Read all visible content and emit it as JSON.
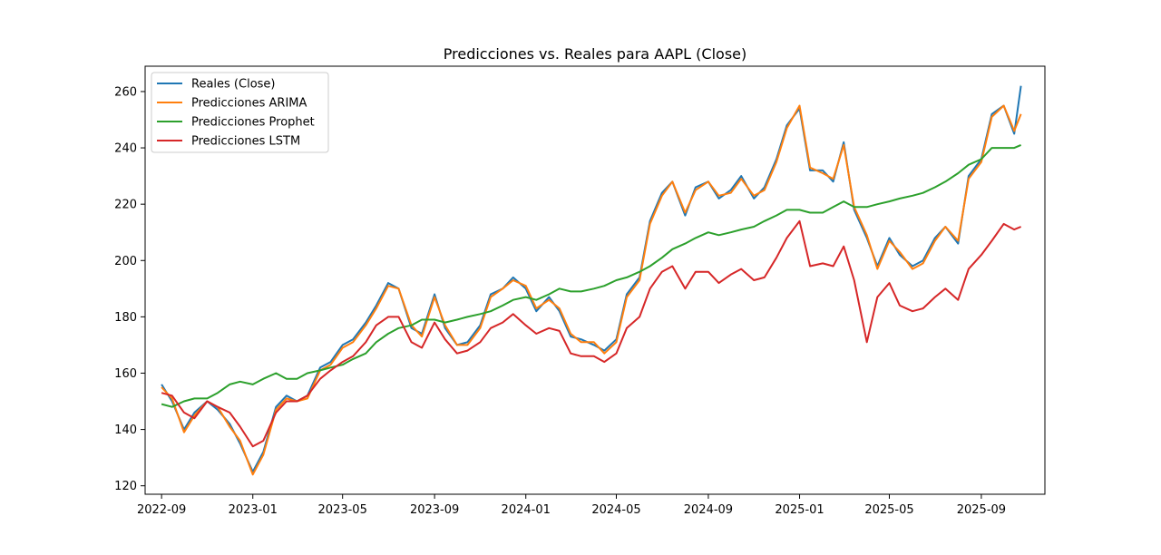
{
  "chart_data": {
    "type": "line",
    "title": "Predicciones vs. Reales para AAPL (Close)",
    "xlabel": "",
    "ylabel": "",
    "x_ticks": [
      "2022-09",
      "2023-01",
      "2023-05",
      "2023-09",
      "2024-01",
      "2024-05",
      "2024-09",
      "2025-01",
      "2025-05",
      "2025-09"
    ],
    "y_ticks": [
      120,
      140,
      160,
      180,
      200,
      220,
      240,
      260
    ],
    "ylim": [
      117,
      269
    ],
    "xlim": [
      "2022-08-10",
      "2025-11-25"
    ],
    "grid": false,
    "legend_position": "top-left",
    "x": [
      "2022-09-01",
      "2022-09-15",
      "2022-10-01",
      "2022-10-15",
      "2022-11-01",
      "2022-11-15",
      "2022-12-01",
      "2022-12-15",
      "2023-01-01",
      "2023-01-15",
      "2023-02-01",
      "2023-02-15",
      "2023-03-01",
      "2023-03-15",
      "2023-04-01",
      "2023-04-15",
      "2023-05-01",
      "2023-05-15",
      "2023-06-01",
      "2023-06-15",
      "2023-07-01",
      "2023-07-15",
      "2023-08-01",
      "2023-08-15",
      "2023-09-01",
      "2023-09-15",
      "2023-10-01",
      "2023-10-15",
      "2023-11-01",
      "2023-11-15",
      "2023-12-01",
      "2023-12-15",
      "2024-01-01",
      "2024-01-15",
      "2024-02-01",
      "2024-02-15",
      "2024-03-01",
      "2024-03-15",
      "2024-04-01",
      "2024-04-15",
      "2024-05-01",
      "2024-05-15",
      "2024-06-01",
      "2024-06-15",
      "2024-07-01",
      "2024-07-15",
      "2024-08-01",
      "2024-08-15",
      "2024-09-01",
      "2024-09-15",
      "2024-10-01",
      "2024-10-15",
      "2024-11-01",
      "2024-11-15",
      "2024-12-01",
      "2024-12-15",
      "2025-01-01",
      "2025-01-15",
      "2025-02-01",
      "2025-02-15",
      "2025-03-01",
      "2025-03-15",
      "2025-04-01",
      "2025-04-15",
      "2025-05-01",
      "2025-05-15",
      "2025-06-01",
      "2025-06-15",
      "2025-07-01",
      "2025-07-15",
      "2025-08-01",
      "2025-08-15",
      "2025-09-01",
      "2025-09-15",
      "2025-10-01",
      "2025-10-15",
      "2025-10-24"
    ],
    "series": [
      {
        "name": "Reales (Close)",
        "color": "#1f77b4",
        "values": [
          156,
          150,
          140,
          146,
          150,
          147,
          142,
          135,
          125,
          132,
          148,
          152,
          150,
          152,
          162,
          164,
          170,
          172,
          178,
          184,
          192,
          190,
          176,
          174,
          188,
          176,
          170,
          171,
          177,
          188,
          190,
          194,
          190,
          182,
          187,
          182,
          173,
          172,
          170,
          168,
          172,
          188,
          194,
          214,
          224,
          228,
          216,
          226,
          228,
          222,
          225,
          230,
          222,
          226,
          236,
          248,
          254,
          232,
          232,
          228,
          242,
          218,
          208,
          198,
          208,
          202,
          198,
          200,
          208,
          212,
          206,
          230,
          236,
          252,
          255,
          245,
          262
        ]
      },
      {
        "name": "Predicciones ARIMA",
        "color": "#ff7f0e",
        "values": [
          155,
          151,
          139,
          145,
          150,
          148,
          141,
          136,
          124,
          131,
          147,
          151,
          150,
          151,
          161,
          163,
          169,
          171,
          177,
          183,
          191,
          190,
          177,
          173,
          187,
          177,
          170,
          170,
          176,
          187,
          190,
          193,
          191,
          183,
          186,
          183,
          174,
          171,
          171,
          167,
          171,
          187,
          193,
          213,
          223,
          228,
          217,
          225,
          228,
          223,
          224,
          229,
          223,
          225,
          235,
          247,
          255,
          233,
          231,
          229,
          241,
          219,
          209,
          197,
          207,
          203,
          197,
          199,
          207,
          212,
          207,
          229,
          235,
          251,
          255,
          246,
          252
        ]
      },
      {
        "name": "Predicciones Prophet",
        "color": "#2ca02c",
        "values": [
          149,
          148,
          150,
          151,
          151,
          153,
          156,
          157,
          156,
          158,
          160,
          158,
          158,
          160,
          161,
          162,
          163,
          165,
          167,
          171,
          174,
          176,
          177,
          179,
          179,
          178,
          179,
          180,
          181,
          182,
          184,
          186,
          187,
          186,
          188,
          190,
          189,
          189,
          190,
          191,
          193,
          194,
          196,
          198,
          201,
          204,
          206,
          208,
          210,
          209,
          210,
          211,
          212,
          214,
          216,
          218,
          218,
          217,
          217,
          219,
          221,
          219,
          219,
          220,
          221,
          222,
          223,
          224,
          226,
          228,
          231,
          234,
          236,
          240,
          240,
          240,
          241
        ]
      },
      {
        "name": "Predicciones LSTM",
        "color": "#d62728",
        "values": [
          153,
          152,
          146,
          144,
          150,
          148,
          146,
          141,
          134,
          136,
          146,
          150,
          150,
          152,
          158,
          161,
          164,
          166,
          171,
          177,
          180,
          180,
          171,
          169,
          178,
          172,
          167,
          168,
          171,
          176,
          178,
          181,
          177,
          174,
          176,
          175,
          167,
          166,
          166,
          164,
          167,
          176,
          180,
          190,
          196,
          198,
          190,
          196,
          196,
          192,
          195,
          197,
          193,
          194,
          201,
          208,
          214,
          198,
          199,
          198,
          205,
          193,
          171,
          187,
          192,
          184,
          182,
          183,
          187,
          190,
          186,
          197,
          202,
          207,
          213,
          211,
          212
        ]
      }
    ]
  }
}
